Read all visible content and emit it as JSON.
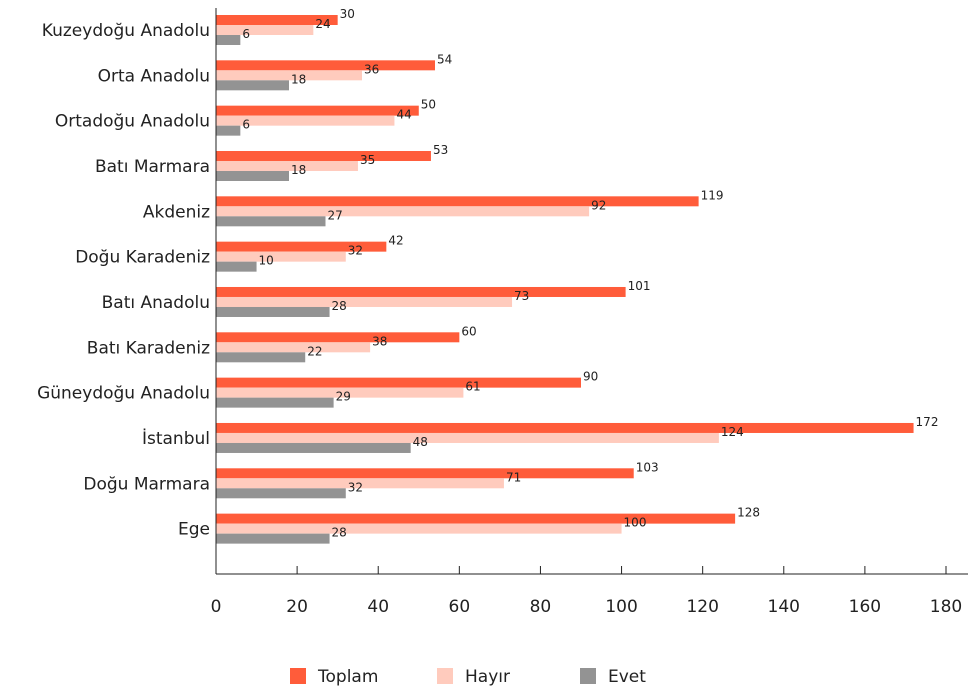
{
  "chart_data": {
    "type": "bar",
    "orientation": "horizontal",
    "categories": [
      "Kuzeydoğu Anadolu",
      "Orta Anadolu",
      "Ortadoğu Anadolu",
      "Batı Marmara",
      "Akdeniz",
      "Doğu Karadeniz",
      "Batı Anadolu",
      "Batı Karadeniz",
      "Güneydoğu Anadolu",
      "İstanbul",
      "Doğu Marmara",
      "Ege"
    ],
    "series": [
      {
        "name": "Toplam",
        "color": "#ff5c3a",
        "values": [
          30,
          54,
          50,
          53,
          119,
          42,
          101,
          60,
          90,
          172,
          103,
          128
        ]
      },
      {
        "name": "Hayır",
        "color": "#ffcbbd",
        "values": [
          24,
          36,
          44,
          35,
          92,
          32,
          73,
          38,
          61,
          124,
          71,
          100
        ]
      },
      {
        "name": "Evet",
        "color": "#939393",
        "values": [
          6,
          18,
          6,
          18,
          27,
          10,
          28,
          22,
          29,
          48,
          32,
          28
        ]
      }
    ],
    "xlim": [
      0,
      180
    ],
    "xticks": [
      0,
      20,
      40,
      60,
      80,
      100,
      120,
      140,
      160,
      180
    ],
    "title": "",
    "xlabel": "",
    "ylabel": "",
    "grid": false,
    "legend_position": "bottom-center"
  }
}
